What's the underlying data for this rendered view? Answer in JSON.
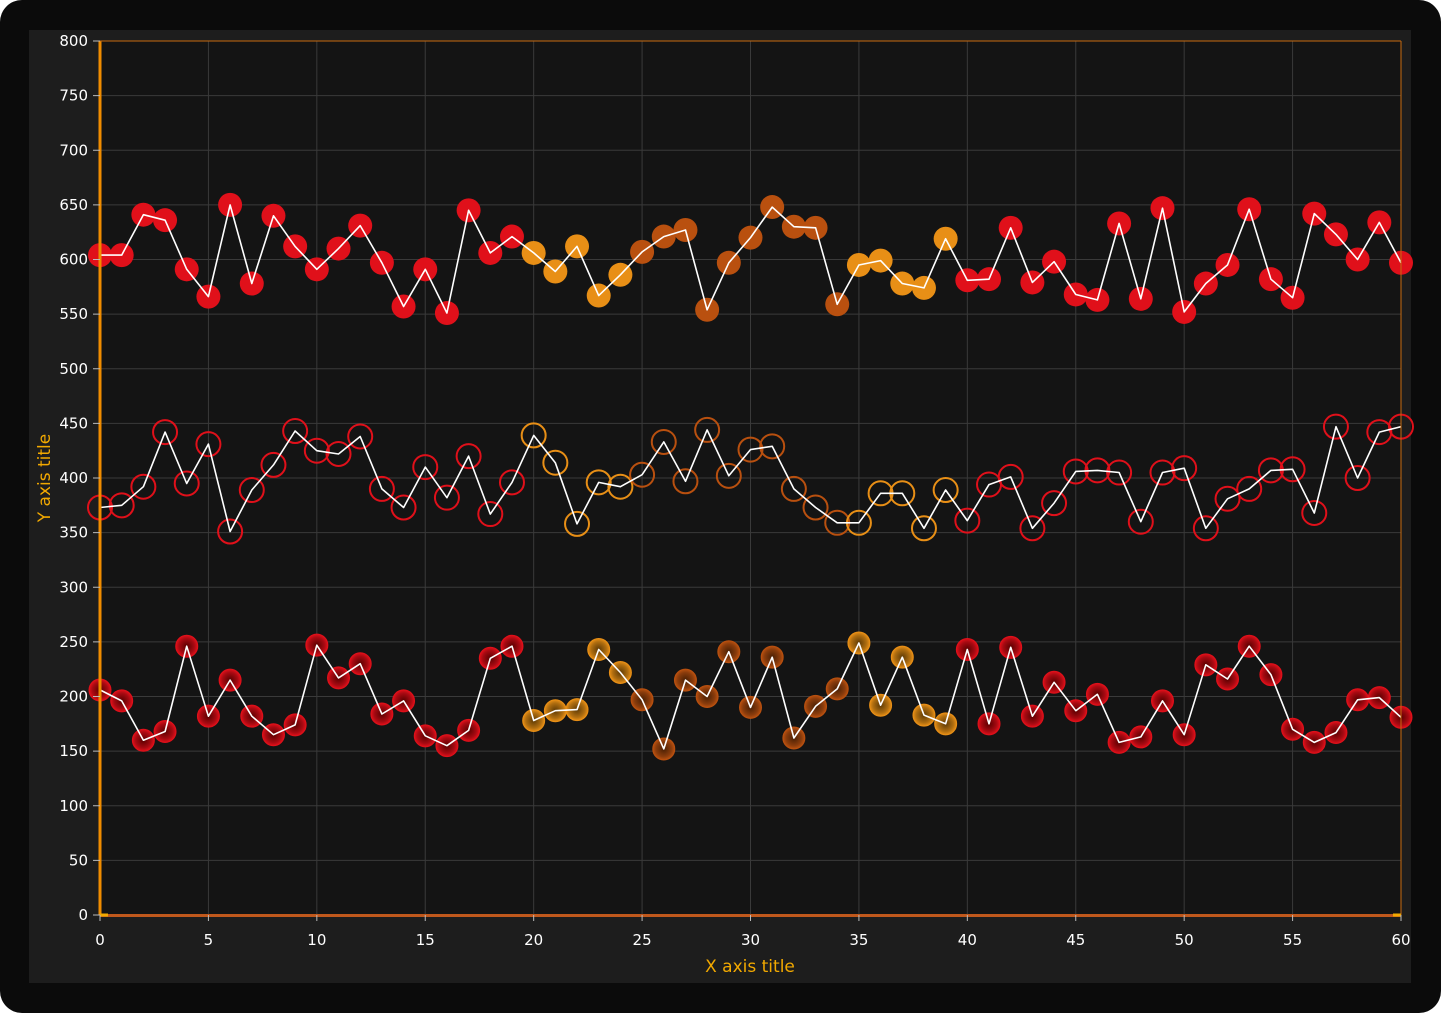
{
  "chart_data": {
    "type": "scatter",
    "xlabel": "X axis title",
    "ylabel": "Y axis title",
    "xlim": [
      0,
      60
    ],
    "ylim": [
      0,
      800
    ],
    "x_ticks": [
      "0",
      "5",
      "10",
      "15",
      "20",
      "25",
      "30",
      "35",
      "40",
      "45",
      "50",
      "55",
      "60"
    ],
    "y_ticks": [
      "0",
      "50",
      "100",
      "150",
      "200",
      "250",
      "300",
      "350",
      "400",
      "450",
      "500",
      "550",
      "600",
      "650",
      "700",
      "750",
      "800"
    ],
    "grid": true,
    "colors": {
      "background": "#141414",
      "grid": "#3a3a3a",
      "axis": "#f08c00",
      "axis_bottom": "#c0581c",
      "line": "#ffffff",
      "red": "#e0101a",
      "dark_orange": "#b9500f",
      "orange": "#e88f16"
    },
    "series": [
      {
        "marker": "filled-circle",
        "x": [
          0,
          1,
          2,
          3,
          4,
          5,
          6,
          7,
          8,
          9,
          10,
          11,
          12,
          13,
          14,
          15,
          16,
          17,
          18,
          19,
          20,
          21,
          22,
          23,
          24,
          25,
          26,
          27,
          28,
          29,
          30,
          31,
          32,
          33,
          34,
          35,
          36,
          37,
          38,
          39,
          40,
          41,
          42,
          43,
          44,
          45,
          46,
          47,
          48,
          49,
          50,
          51,
          52,
          53,
          54,
          55,
          56,
          57,
          58,
          59,
          60
        ],
        "y": [
          604,
          604,
          641,
          636,
          591,
          566,
          650,
          578,
          640,
          612,
          591,
          610,
          631,
          597,
          557,
          591,
          551,
          645,
          606,
          621,
          606,
          589,
          612,
          567,
          586,
          607,
          621,
          627,
          554,
          597,
          620,
          648,
          630,
          629,
          559,
          595,
          599,
          578,
          574,
          619,
          581,
          582,
          629,
          579,
          598,
          568,
          563,
          633,
          564,
          647,
          552,
          578,
          595,
          646,
          582,
          565,
          642,
          623,
          600,
          634,
          597
        ],
        "marker_colors": [
          "red",
          "red",
          "red",
          "red",
          "red",
          "red",
          "red",
          "red",
          "red",
          "red",
          "red",
          "red",
          "red",
          "red",
          "red",
          "red",
          "red",
          "red",
          "red",
          "red",
          "orange",
          "orange",
          "orange",
          "orange",
          "orange",
          "dark_orange",
          "dark_orange",
          "dark_orange",
          "dark_orange",
          "dark_orange",
          "dark_orange",
          "dark_orange",
          "dark_orange",
          "dark_orange",
          "dark_orange",
          "orange",
          "orange",
          "orange",
          "orange",
          "orange",
          "red",
          "red",
          "red",
          "red",
          "red",
          "red",
          "red",
          "red",
          "red",
          "red",
          "red",
          "red",
          "red",
          "red",
          "red",
          "red",
          "red",
          "red",
          "red",
          "red",
          "red"
        ]
      },
      {
        "marker": "ring",
        "x": [
          0,
          1,
          2,
          3,
          4,
          5,
          6,
          7,
          8,
          9,
          10,
          11,
          12,
          13,
          14,
          15,
          16,
          17,
          18,
          19,
          20,
          21,
          22,
          23,
          24,
          25,
          26,
          27,
          28,
          29,
          30,
          31,
          32,
          33,
          34,
          35,
          36,
          37,
          38,
          39,
          40,
          41,
          42,
          43,
          44,
          45,
          46,
          47,
          48,
          49,
          50,
          51,
          52,
          53,
          54,
          55,
          56,
          57,
          58,
          59,
          60
        ],
        "y": [
          373,
          375,
          392,
          442,
          395,
          431,
          351,
          389,
          412,
          443,
          425,
          422,
          438,
          390,
          373,
          410,
          382,
          420,
          367,
          396,
          439,
          414,
          358,
          396,
          392,
          403,
          433,
          397,
          444,
          402,
          426,
          429,
          390,
          373,
          359,
          359,
          386,
          386,
          354,
          389,
          361,
          394,
          401,
          354,
          377,
          406,
          407,
          405,
          360,
          405,
          409,
          354,
          381,
          390,
          407,
          408,
          368,
          447,
          400,
          442,
          447
        ],
        "marker_colors": [
          "red",
          "red",
          "red",
          "red",
          "red",
          "red",
          "red",
          "red",
          "red",
          "red",
          "red",
          "red",
          "red",
          "red",
          "red",
          "red",
          "red",
          "red",
          "red",
          "red",
          "orange",
          "orange",
          "orange",
          "orange",
          "orange",
          "dark_orange",
          "dark_orange",
          "dark_orange",
          "dark_orange",
          "dark_orange",
          "dark_orange",
          "dark_orange",
          "dark_orange",
          "dark_orange",
          "dark_orange",
          "orange",
          "orange",
          "orange",
          "orange",
          "orange",
          "red",
          "red",
          "red",
          "red",
          "red",
          "red",
          "red",
          "red",
          "red",
          "red",
          "red",
          "red",
          "red",
          "red",
          "red",
          "red",
          "red",
          "red",
          "red",
          "red",
          "red"
        ]
      },
      {
        "marker": "soft-circle",
        "x": [
          0,
          1,
          2,
          3,
          4,
          5,
          6,
          7,
          8,
          9,
          10,
          11,
          12,
          13,
          14,
          15,
          16,
          17,
          18,
          19,
          20,
          21,
          22,
          23,
          24,
          25,
          26,
          27,
          28,
          29,
          30,
          31,
          32,
          33,
          34,
          35,
          36,
          37,
          38,
          39,
          40,
          41,
          42,
          43,
          44,
          45,
          46,
          47,
          48,
          49,
          50,
          51,
          52,
          53,
          54,
          55,
          56,
          57,
          58,
          59,
          60
        ],
        "y": [
          206,
          196,
          160,
          168,
          246,
          182,
          215,
          182,
          165,
          174,
          247,
          217,
          230,
          184,
          196,
          164,
          155,
          169,
          235,
          246,
          178,
          187,
          188,
          243,
          222,
          197,
          152,
          215,
          200,
          241,
          190,
          236,
          162,
          191,
          207,
          249,
          192,
          236,
          183,
          175,
          243,
          175,
          245,
          182,
          213,
          187,
          202,
          158,
          163,
          196,
          165,
          229,
          216,
          246,
          220,
          170,
          158,
          167,
          197,
          199,
          181
        ],
        "marker_colors": [
          "red",
          "red",
          "red",
          "red",
          "red",
          "red",
          "red",
          "red",
          "red",
          "red",
          "red",
          "red",
          "red",
          "red",
          "red",
          "red",
          "red",
          "red",
          "red",
          "red",
          "orange",
          "orange",
          "orange",
          "orange",
          "orange",
          "dark_orange",
          "dark_orange",
          "dark_orange",
          "dark_orange",
          "dark_orange",
          "dark_orange",
          "dark_orange",
          "dark_orange",
          "dark_orange",
          "dark_orange",
          "orange",
          "orange",
          "orange",
          "orange",
          "orange",
          "red",
          "red",
          "red",
          "red",
          "red",
          "red",
          "red",
          "red",
          "red",
          "red",
          "red",
          "red",
          "red",
          "red",
          "red",
          "red",
          "red",
          "red",
          "red",
          "red",
          "red"
        ]
      }
    ]
  }
}
